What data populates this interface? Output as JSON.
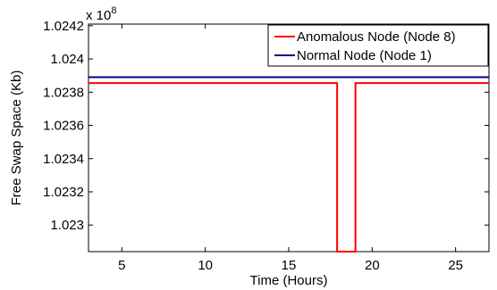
{
  "chart_data": {
    "type": "line",
    "title": "",
    "xlabel": "Time (Hours)",
    "ylabel": "Free Swap Space (Kb)",
    "y_exponent_label": "x 10",
    "y_exponent_power": "8",
    "xlim": [
      3,
      27
    ],
    "ylim": [
      1.02284,
      1.02421
    ],
    "x_ticks": [
      5,
      10,
      15,
      20,
      25
    ],
    "x_tick_labels": [
      "5",
      "10",
      "15",
      "20",
      "25"
    ],
    "y_ticks": [
      1.023,
      1.0232,
      1.0234,
      1.0236,
      1.0238,
      1.024,
      1.0242
    ],
    "y_tick_labels": [
      "1.023",
      "1.0232",
      "1.0234",
      "1.0236",
      "1.0238",
      "1.024",
      "1.0242"
    ],
    "grid": false,
    "legend_position": "top-right",
    "series": [
      {
        "name": "Anomalous Node (Node 8)",
        "color": "#ff0000",
        "x": [
          3,
          17.9,
          17.9,
          19,
          19,
          27
        ],
        "y": [
          1.023855,
          1.023855,
          1.02284,
          1.02284,
          1.023855,
          1.023855
        ]
      },
      {
        "name": "Normal Node (Node 1)",
        "color": "#00008b",
        "x": [
          3,
          27
        ],
        "y": [
          1.02389,
          1.02389
        ]
      }
    ]
  }
}
